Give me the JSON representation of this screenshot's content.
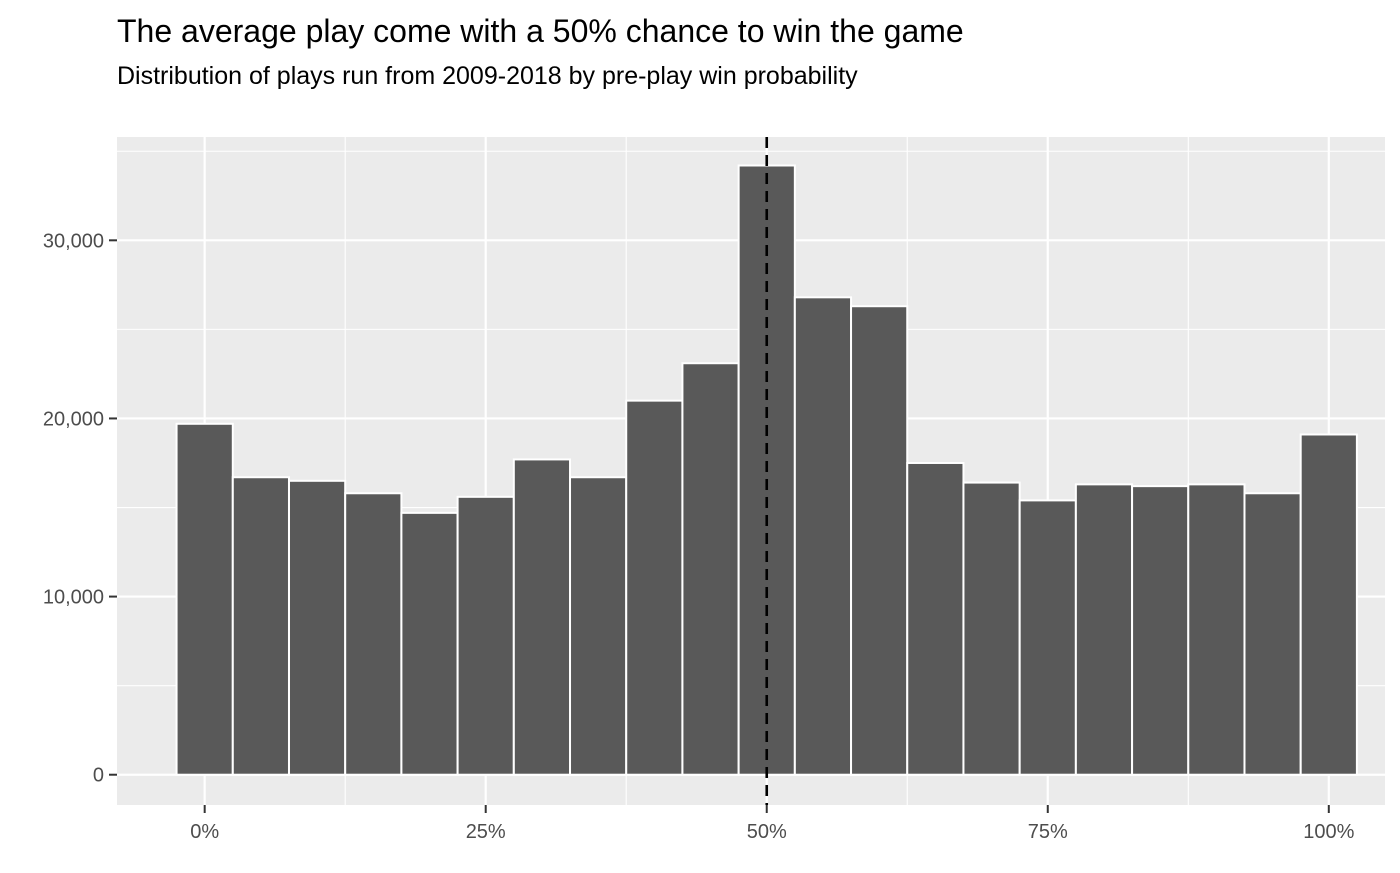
{
  "chart_data": {
    "type": "bar",
    "title": "The average play come with a 50% chance to win the game",
    "subtitle": "Distribution of plays run from 2009-2018 by pre-play win probability",
    "xlabel": "",
    "ylabel": "",
    "bin_width": 0.05,
    "bin_centers": [
      0.0,
      0.05,
      0.1,
      0.15,
      0.2,
      0.25,
      0.3,
      0.35,
      0.4,
      0.45,
      0.5,
      0.55,
      0.6,
      0.65,
      0.7,
      0.75,
      0.8,
      0.85,
      0.9,
      0.95,
      1.0
    ],
    "values": [
      19700,
      16700,
      16500,
      15800,
      14700,
      15600,
      17700,
      16700,
      21000,
      23100,
      34200,
      26800,
      26300,
      17500,
      16400,
      15400,
      16300,
      16200,
      16300,
      15800,
      19100
    ],
    "xlim": [
      -0.078,
      1.05
    ],
    "ylim": [
      -1700,
      35800
    ],
    "x_ticks": [
      0,
      0.25,
      0.5,
      0.75,
      1.0
    ],
    "x_tick_labels": [
      "0%",
      "25%",
      "50%",
      "75%",
      "100%"
    ],
    "y_ticks": [
      0,
      10000,
      20000,
      30000
    ],
    "y_tick_labels": [
      "0",
      "10,000",
      "20,000",
      "30,000"
    ],
    "reference_line": {
      "x": 0.5,
      "style": "dashed",
      "color": "#000000"
    },
    "grid": true,
    "legend": "none",
    "colors": {
      "bar_fill": "#595959",
      "bar_outline": "#ffffff",
      "panel_background": "#ebebeb",
      "grid": "#ffffff",
      "reference_line": "#000000"
    }
  }
}
